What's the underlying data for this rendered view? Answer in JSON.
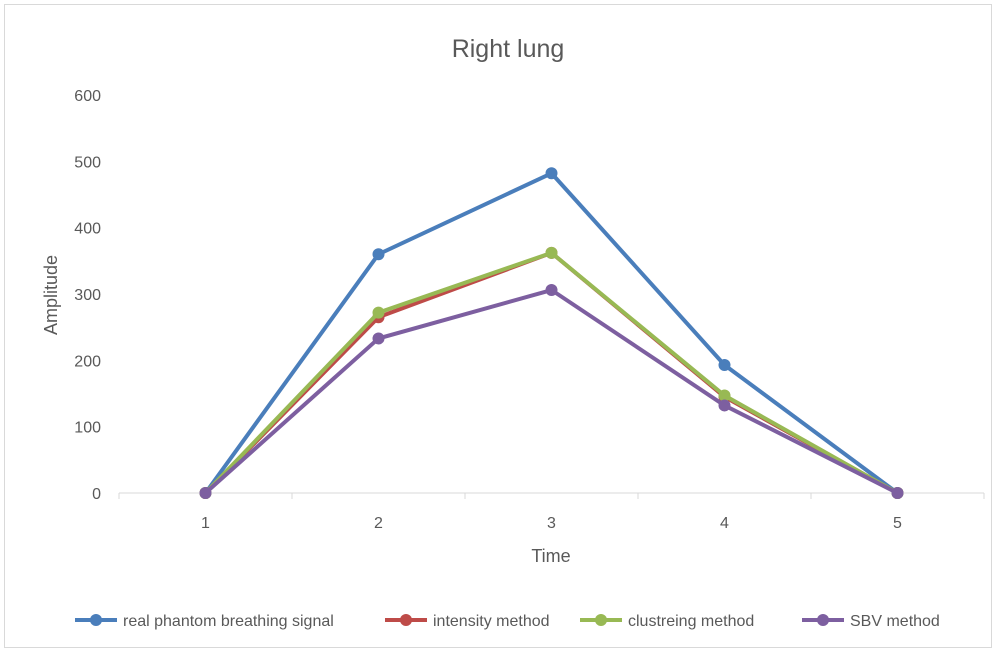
{
  "chart_data": {
    "type": "line",
    "title": "Right lung",
    "xlabel": "Time",
    "ylabel": "Amplitude",
    "categories": [
      "1",
      "2",
      "3",
      "4",
      "5"
    ],
    "ylim": [
      0,
      600
    ],
    "yticks": [
      0,
      100,
      200,
      300,
      400,
      500,
      600
    ],
    "grid": false,
    "legend_position": "bottom",
    "series": [
      {
        "name": "real phantom breathing signal",
        "color": "#4a7ebb",
        "values": [
          0,
          360,
          482,
          193,
          0
        ]
      },
      {
        "name": "intensity method",
        "color": "#be4b48",
        "values": [
          0,
          265,
          362,
          145,
          0
        ]
      },
      {
        "name": "clustreing method",
        "color": "#98b954",
        "values": [
          0,
          272,
          362,
          147,
          0
        ]
      },
      {
        "name": "SBV method",
        "color": "#7d5fa0",
        "values": [
          0,
          233,
          306,
          132,
          0
        ]
      }
    ]
  }
}
